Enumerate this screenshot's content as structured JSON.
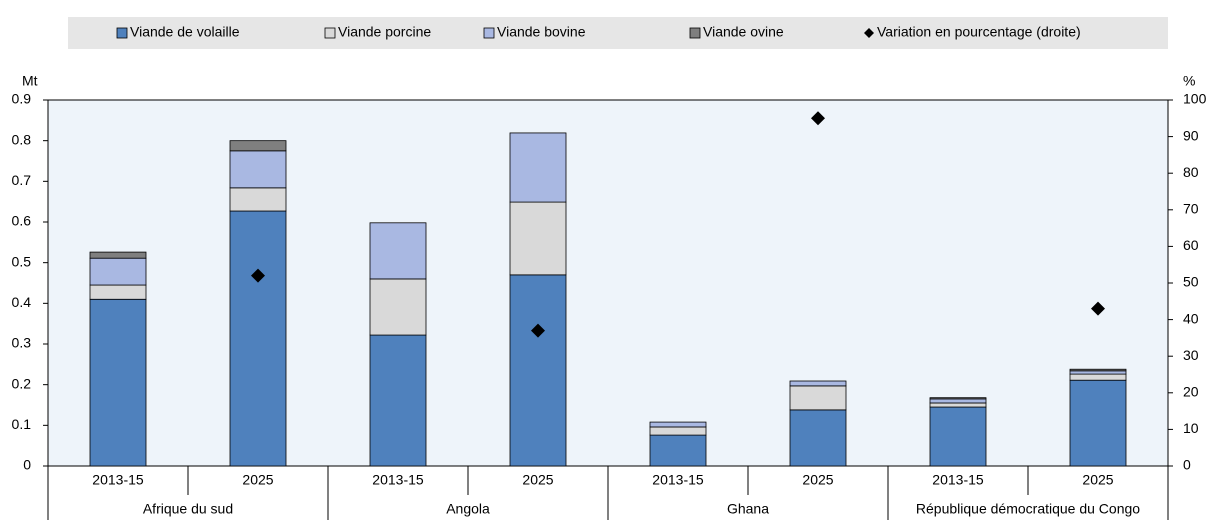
{
  "chart_data": {
    "type": "bar",
    "stacked": true,
    "categories": [
      "2013-15",
      "2025",
      "2013-15",
      "2025",
      "2013-15",
      "2025",
      "2013-15",
      "2025"
    ],
    "groups": [
      "Afrique du sud",
      "Angola",
      "Ghana",
      "République démocratique du Congo"
    ],
    "ylabel": "Mt",
    "y2label": "%",
    "ylim": [
      0,
      0.9
    ],
    "yticks": [
      0,
      0.1,
      0.2,
      0.3,
      0.4,
      0.5,
      0.6,
      0.7,
      0.8,
      0.9
    ],
    "y2lim": [
      0,
      100
    ],
    "y2ticks": [
      0,
      10,
      20,
      30,
      40,
      50,
      60,
      70,
      80,
      90,
      100
    ],
    "legend": "top",
    "series": [
      {
        "name": "Viande de volaille",
        "color": "#4f81bd",
        "values": [
          0.41,
          0.627,
          0.322,
          0.47,
          0.076,
          0.138,
          0.145,
          0.211
        ]
      },
      {
        "name": "Viande porcine",
        "color": "#d9d9d9",
        "values": [
          0.035,
          0.057,
          0.138,
          0.179,
          0.02,
          0.059,
          0.01,
          0.015
        ]
      },
      {
        "name": "Viande bovine",
        "color": "#a9b8e2",
        "values": [
          0.066,
          0.091,
          0.138,
          0.17,
          0.012,
          0.012,
          0.01,
          0.008
        ]
      },
      {
        "name": "Viande ovine",
        "color": "#7f7f7f",
        "values": [
          0.015,
          0.025,
          0,
          0,
          0,
          0,
          0.003,
          0.004
        ]
      },
      {
        "name": "Variation en pourcentage (droite)",
        "color": "#000000",
        "type": "scatter",
        "axis": "y2",
        "values": [
          null,
          52,
          null,
          37,
          null,
          95,
          null,
          43
        ]
      }
    ]
  }
}
